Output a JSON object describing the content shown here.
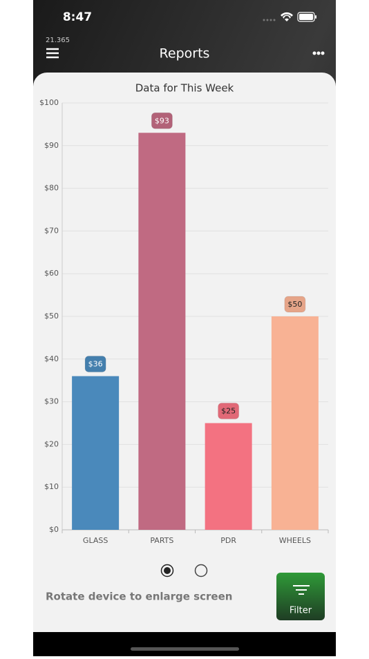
{
  "status_bar": {
    "time": "8:47"
  },
  "header": {
    "subtitle": "21.365",
    "title": "Reports"
  },
  "chart_data": {
    "type": "bar",
    "title": "Data for This Week",
    "categories": [
      "GLASS",
      "PARTS",
      "PDR",
      "WHEELS"
    ],
    "values": [
      36,
      93,
      25,
      50
    ],
    "value_labels": [
      "$36",
      "$93",
      "$25",
      "$50"
    ],
    "colors": [
      "#4a89bb",
      "#c06a82",
      "#f37281",
      "#f8b294"
    ],
    "ylim": [
      0,
      100
    ],
    "yticks": [
      {
        "value": 0,
        "label": "$0"
      },
      {
        "value": 10,
        "label": "$10"
      },
      {
        "value": 20,
        "label": "$20"
      },
      {
        "value": 30,
        "label": "$30"
      },
      {
        "value": 40,
        "label": "$40"
      },
      {
        "value": 50,
        "label": "$50"
      },
      {
        "value": 60,
        "label": "$60"
      },
      {
        "value": 70,
        "label": "$70"
      },
      {
        "value": 80,
        "label": "$80"
      },
      {
        "value": 90,
        "label": "$90"
      },
      {
        "value": 100,
        "label": "$100"
      }
    ],
    "grid": true
  },
  "footer": {
    "hint": "Rotate device to enlarge screen",
    "button": "Filter"
  }
}
